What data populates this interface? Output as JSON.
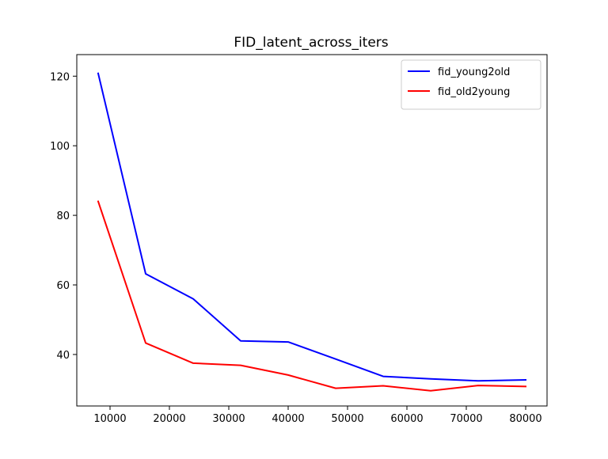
{
  "chart_data": {
    "type": "line",
    "title": "FID_latent_across_iters",
    "xlabel": "",
    "ylabel": "",
    "xlim": [
      4400,
      83600
    ],
    "ylim": [
      25.2,
      126.2
    ],
    "x_ticks": [
      10000,
      20000,
      30000,
      40000,
      50000,
      60000,
      70000,
      80000
    ],
    "x_tick_labels": [
      "10000",
      "20000",
      "30000",
      "40000",
      "50000",
      "60000",
      "70000",
      "80000"
    ],
    "y_ticks": [
      40,
      60,
      80,
      100,
      120
    ],
    "y_tick_labels": [
      "40",
      "60",
      "80",
      "100",
      "120"
    ],
    "grid": false,
    "legend_position": "top-right",
    "x": [
      8000,
      16000,
      24000,
      32000,
      40000,
      48000,
      56000,
      64000,
      72000,
      80000
    ],
    "series": [
      {
        "name": "fid_young2old",
        "color": "#0000ff",
        "values": [
          120.8,
          63.2,
          56.0,
          43.9,
          43.6,
          38.7,
          33.7,
          33.0,
          32.4,
          32.7
        ]
      },
      {
        "name": "fid_old2young",
        "color": "#ff0000",
        "values": [
          84.0,
          43.3,
          37.5,
          36.9,
          34.1,
          30.3,
          31.0,
          29.6,
          31.1,
          30.8
        ]
      }
    ]
  }
}
